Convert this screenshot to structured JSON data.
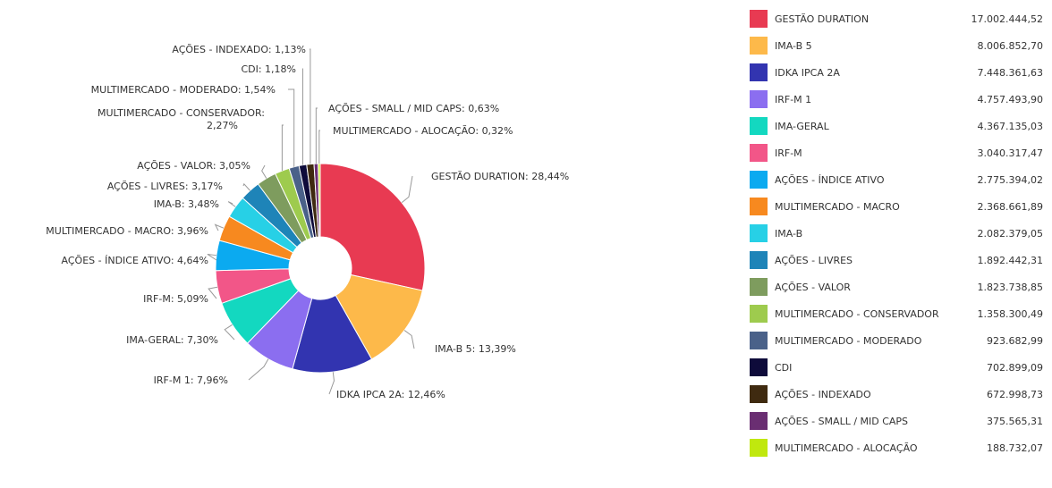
{
  "chart_data": {
    "type": "pie",
    "donut": true,
    "slices": [
      {
        "label": "GESTÃO DURATION",
        "slice_label": "GESTÃO DURATION: 28,44%",
        "percent": 28.44,
        "value": "17.002.444,52",
        "color": "#E83A52"
      },
      {
        "label": "IMA-B 5",
        "slice_label": "IMA-B 5: 13,39%",
        "percent": 13.39,
        "value": "8.006.852,70",
        "color": "#FDB94A"
      },
      {
        "label": "IDKA IPCA 2A",
        "slice_label": "IDKA IPCA 2A: 12,46%",
        "percent": 12.46,
        "value": "7.448.361,63",
        "color": "#3234B0"
      },
      {
        "label": "IRF-M 1",
        "slice_label": "IRF-M 1: 7,96%",
        "percent": 7.96,
        "value": "4.757.493,90",
        "color": "#8B6EF0"
      },
      {
        "label": "IMA-GERAL",
        "slice_label": "IMA-GERAL: 7,30%",
        "percent": 7.3,
        "value": "4.367.135,03",
        "color": "#13D8C0"
      },
      {
        "label": "IRF-M",
        "slice_label": "IRF-M: 5,09%",
        "percent": 5.09,
        "value": "3.040.317,47",
        "color": "#F25688"
      },
      {
        "label": "AÇÕES - ÍNDICE ATIVO",
        "slice_label": "AÇÕES - ÍNDICE ATIVO: 4,64%",
        "percent": 4.64,
        "value": "2.775.394,02",
        "color": "#0BAAF0"
      },
      {
        "label": "MULTIMERCADO - MACRO",
        "slice_label": "MULTIMERCADO - MACRO: 3,96%",
        "percent": 3.96,
        "value": "2.368.661,89",
        "color": "#F7891F"
      },
      {
        "label": "IMA-B",
        "slice_label": "IMA-B: 3,48%",
        "percent": 3.48,
        "value": "2.082.379,05",
        "color": "#27D0E6"
      },
      {
        "label": "AÇÕES - LIVRES",
        "slice_label": "AÇÕES - LIVRES: 3,17%",
        "percent": 3.17,
        "value": "1.892.442,31",
        "color": "#1E84B8"
      },
      {
        "label": "AÇÕES - VALOR",
        "slice_label": "AÇÕES - VALOR: 3,05%",
        "percent": 3.05,
        "value": "1.823.738,85",
        "color": "#7E9C5E"
      },
      {
        "label": "MULTIMERCADO - CONSERVADOR",
        "slice_label": "MULTIMERCADO - CONSERVADOR: 2,27%",
        "percent": 2.27,
        "value": "1.358.300,49",
        "color": "#9ECB4E"
      },
      {
        "label": "MULTIMERCADO - MODERADO",
        "slice_label": "MULTIMERCADO - MODERADO: 1,54%",
        "percent": 1.54,
        "value": "923.682,99",
        "color": "#4A6189"
      },
      {
        "label": "CDI",
        "slice_label": "CDI: 1,18%",
        "percent": 1.18,
        "value": "702.899,09",
        "color": "#0E0B3A"
      },
      {
        "label": "AÇÕES - INDEXADO",
        "slice_label": "AÇÕES - INDEXADO: 1,13%",
        "percent": 1.13,
        "value": "672.998,73",
        "color": "#3F2A10"
      },
      {
        "label": "AÇÕES - SMALL / MID CAPS",
        "slice_label": "AÇÕES - SMALL / MID CAPS: 0,63%",
        "percent": 0.63,
        "value": "375.565,31",
        "color": "#6A2E72"
      },
      {
        "label": "MULTIMERCADO - ALOCAÇÃO",
        "slice_label": "MULTIMERCADO - ALOCAÇÃO: 0,32%",
        "percent": 0.32,
        "value": "188.732,07",
        "color": "#C0E80E"
      }
    ],
    "legend_position": "right"
  }
}
